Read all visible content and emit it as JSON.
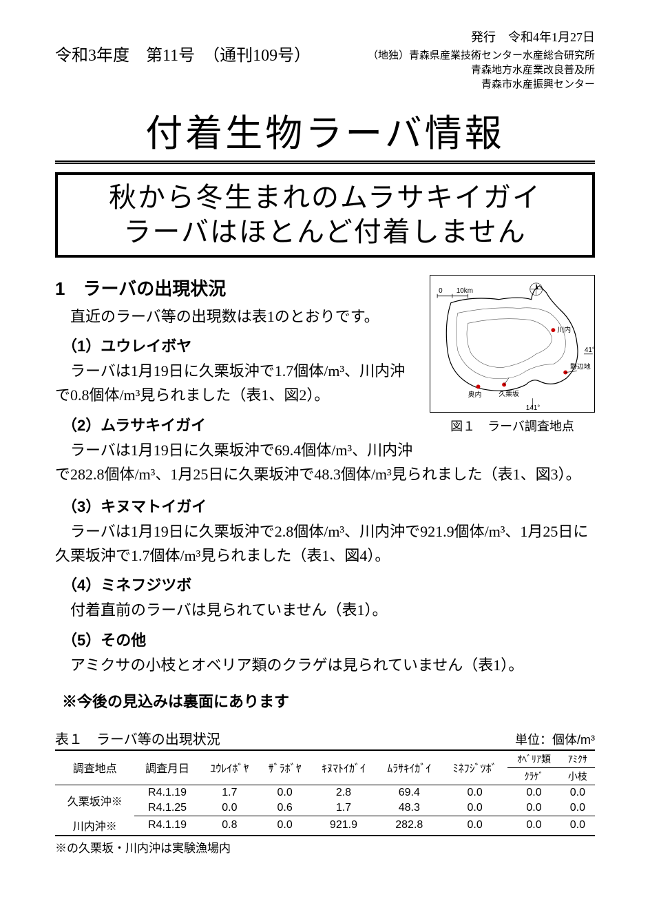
{
  "header": {
    "issue": "令和3年度　第11号　（通刊109号）",
    "pubDate": "発行　令和4年1月27日",
    "publishers": [
      "（地独）青森県産業技術センター水産総合研究所",
      "青森地方水産業改良普及所",
      "青森市水産振興センター"
    ]
  },
  "title": "付着生物ラーバ情報",
  "subtitle": {
    "line1": "秋から冬生まれのムラサキイガイ",
    "line2": "ラーバはほとんど付着しません"
  },
  "section1": {
    "heading": "1　ラーバの出現状況",
    "intro": "直近のラーバ等の出現数は表1のとおりです。",
    "sub1": {
      "heading": "（1）ユウレイボヤ",
      "text": "ラーバは1月19日に久栗坂沖で1.7個体/m³、川内沖で0.8個体/m³見られました（表1、図2）。"
    },
    "sub2": {
      "heading": "（2）ムラサキイガイ",
      "text": "ラーバは1月19日に久栗坂沖で69.4個体/m³、川内沖で282.8個体/m³、1月25日に久栗坂沖で48.3個体/m³見られました（表1、図3）。"
    },
    "sub3": {
      "heading": "（3）キヌマトイガイ",
      "text": "ラーバは1月19日に久栗坂沖で2.8個体/m³、川内沖で921.9個体/m³、1月25日に久栗坂沖で1.7個体/m³見られました（表1、図4）。"
    },
    "sub4": {
      "heading": "（4）ミネフジツボ",
      "text": "付着直前のラーバは見られていません（表1）。"
    },
    "sub5": {
      "heading": "（5）その他",
      "text": "アミクサの小枝とオベリア類のクラゲは見られていません（表1）。"
    }
  },
  "figure1": {
    "caption": "図１　ラーバ調査地点",
    "labels": {
      "kawauchi": "川内",
      "okunai": "奥内",
      "kugurizaka": "久栗坂",
      "nobeji": "野辺地"
    }
  },
  "note": "※今後の見込みは裏面にあります",
  "table": {
    "title": "表１　ラーバ等の出現状況",
    "unit": "単位：個体/m³",
    "columns": [
      "調査地点",
      "調査月日",
      "ﾕｳﾚｲﾎﾞﾔ",
      "ｻﾞﾗﾎﾞﾔ",
      "ｷﾇﾏﾄｲｶﾞｲ",
      "ﾑﾗｻｷｲｶﾞｲ",
      "ﾐﾈﾌｼﾞﾂﾎﾞ"
    ],
    "col_oberia_top": "ｵﾍﾞﾘｱ類",
    "col_oberia_bottom": "ｸﾗｹﾞ",
    "col_amikusa_top": "ｱﾐｸｻ",
    "col_amikusa_bottom": "小枝",
    "rows": [
      {
        "site": "久栗坂沖※",
        "date": "R4.1.19",
        "vals": [
          "1.7",
          "0.0",
          "2.8",
          "69.4",
          "0.0",
          "0.0",
          "0.0"
        ]
      },
      {
        "site": "",
        "date": "R4.1.25",
        "vals": [
          "0.0",
          "0.6",
          "1.7",
          "48.3",
          "0.0",
          "0.0",
          "0.0"
        ]
      },
      {
        "site": "川内沖※",
        "date": "R4.1.19",
        "vals": [
          "0.8",
          "0.0",
          "921.9",
          "282.8",
          "0.0",
          "0.0",
          "0.0"
        ]
      }
    ],
    "footnote": "※の久栗坂・川内沖は実験漁場内"
  },
  "colors": {
    "text": "#000000",
    "bg": "#ffffff",
    "dot": "#cc0000"
  }
}
